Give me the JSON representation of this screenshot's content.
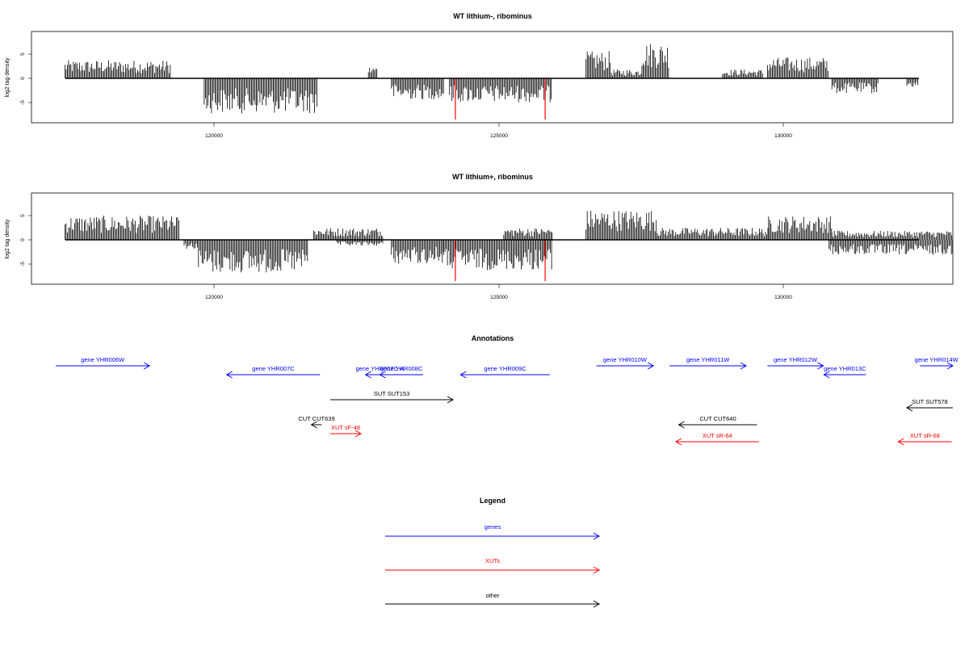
{
  "chart_data": [
    {
      "type": "bar",
      "title": "WT lithium-, ribominus",
      "ylabel": "log2 tag density",
      "xlim": [
        116800,
        132800
      ],
      "ylim": [
        -9,
        9
      ],
      "x_ticks": [
        "120000",
        "125000",
        "130000"
      ],
      "y_ticks": [
        "5",
        "0",
        "-5"
      ],
      "highlight_color": "#ff0000",
      "segments": [
        {
          "start": 117380,
          "end": 119220,
          "level": 3
        },
        {
          "start": 119800,
          "end": 121760,
          "level": -5.8
        },
        {
          "start": 122650,
          "end": 122800,
          "level": 2
        },
        {
          "start": 123050,
          "end": 123960,
          "level": -3.5
        },
        {
          "start": 124060,
          "end": 125830,
          "level": -4
        },
        {
          "start": 126430,
          "end": 126860,
          "level": 4.5
        },
        {
          "start": 126870,
          "end": 127400,
          "level": 1.5
        },
        {
          "start": 127400,
          "end": 127880,
          "level": 6
        },
        {
          "start": 128800,
          "end": 129500,
          "level": 1.5
        },
        {
          "start": 129580,
          "end": 130650,
          "level": 3.5
        },
        {
          "start": 130700,
          "end": 131500,
          "level": -2.5
        },
        {
          "start": 132000,
          "end": 132200,
          "level": -1.5
        }
      ],
      "highlights": [
        {
          "x": 124160,
          "value": -8.5
        },
        {
          "x": 125720,
          "value": -8.5
        }
      ]
    },
    {
      "type": "bar",
      "title": "WT lithium+, ribominus",
      "ylabel": "log2 tag density",
      "xlim": [
        116800,
        132800
      ],
      "ylim": [
        -9,
        9
      ],
      "x_ticks": [
        "120000",
        "125000",
        "130000"
      ],
      "y_ticks": [
        "5",
        "0",
        "-5"
      ],
      "highlight_color": "#ff0000",
      "segments": [
        {
          "start": 117380,
          "end": 119370,
          "level": 4
        },
        {
          "start": 119450,
          "end": 119700,
          "level": -1.5
        },
        {
          "start": 119700,
          "end": 121600,
          "level": -5.5
        },
        {
          "start": 121700,
          "end": 122900,
          "level": 2
        },
        {
          "start": 122100,
          "end": 122900,
          "level": -1
        },
        {
          "start": 123050,
          "end": 123960,
          "level": -4
        },
        {
          "start": 123960,
          "end": 125850,
          "level": -5
        },
        {
          "start": 125000,
          "end": 125850,
          "level": 2
        },
        {
          "start": 126430,
          "end": 127650,
          "level": 5
        },
        {
          "start": 127650,
          "end": 128600,
          "level": 2
        },
        {
          "start": 128600,
          "end": 129600,
          "level": 2
        },
        {
          "start": 129600,
          "end": 130700,
          "level": 4
        },
        {
          "start": 130650,
          "end": 132800,
          "level": -2.5
        },
        {
          "start": 130700,
          "end": 132800,
          "level": 1.5
        }
      ],
      "highlights": [
        {
          "x": 124160,
          "value": -8.5
        },
        {
          "x": 125720,
          "value": -8.5
        }
      ]
    }
  ],
  "annotations": {
    "title": "Annotations",
    "items": [
      {
        "label": "gene YHR006W",
        "start": 117220,
        "end": 118850,
        "dir": "right",
        "cls": "gene",
        "row": 0
      },
      {
        "label": "gene YHR007C",
        "start": 120190,
        "end": 121810,
        "dir": "left",
        "cls": "gene",
        "row": 1
      },
      {
        "label": "gene YHR007C-A",
        "start": 122600,
        "end": 123100,
        "dir": "left",
        "cls": "gene",
        "row": 1
      },
      {
        "label": "gene YHR008C",
        "start": 122850,
        "end": 123600,
        "dir": "left",
        "cls": "gene",
        "row": 1
      },
      {
        "label": "gene YHR009C",
        "start": 124250,
        "end": 125800,
        "dir": "left",
        "cls": "gene",
        "row": 1
      },
      {
        "label": "gene YHR010W",
        "start": 126610,
        "end": 127600,
        "dir": "right",
        "cls": "gene",
        "row": 0
      },
      {
        "label": "gene YHR011W",
        "start": 127880,
        "end": 129210,
        "dir": "right",
        "cls": "gene",
        "row": 0
      },
      {
        "label": "gene YHR012W",
        "start": 129580,
        "end": 130550,
        "dir": "right",
        "cls": "gene",
        "row": 0
      },
      {
        "label": "gene YHR013C",
        "start": 130560,
        "end": 131290,
        "dir": "left",
        "cls": "gene",
        "row": 1
      },
      {
        "label": "gene YHR014W",
        "start": 132230,
        "end": 132800,
        "dir": "right",
        "cls": "gene",
        "row": 0
      },
      {
        "label": "SUT SUT153",
        "start": 121990,
        "end": 124120,
        "dir": "right",
        "cls": "other",
        "row": 2
      },
      {
        "label": "SUT SUT578",
        "start": 132000,
        "end": 132800,
        "dir": "left",
        "cls": "other",
        "row": 3
      },
      {
        "label": "CUT CUT639",
        "start": 121660,
        "end": 121840,
        "dir": "left",
        "cls": "other",
        "row": 4
      },
      {
        "label": "XUT sF-48",
        "start": 121990,
        "end": 122520,
        "dir": "right",
        "cls": "xut",
        "row": 5
      },
      {
        "label": "CUT CUT640",
        "start": 128040,
        "end": 129400,
        "dir": "left",
        "cls": "other",
        "row": 4
      },
      {
        "label": "XUT sR-64",
        "start": 127990,
        "end": 129430,
        "dir": "left",
        "cls": "xut",
        "row": 6
      },
      {
        "label": "XUT sR-68",
        "start": 131850,
        "end": 132780,
        "dir": "left",
        "cls": "xut",
        "row": 6
      }
    ]
  },
  "legend": {
    "title": "Legend",
    "items": [
      {
        "label": "genes",
        "color": "#0000ff"
      },
      {
        "label": "XUTs",
        "color": "#ff0000"
      },
      {
        "label": "other",
        "color": "#000000"
      }
    ]
  },
  "colors": {
    "gene": "#0000ff",
    "xut": "#ff0000",
    "other": "#000000"
  }
}
